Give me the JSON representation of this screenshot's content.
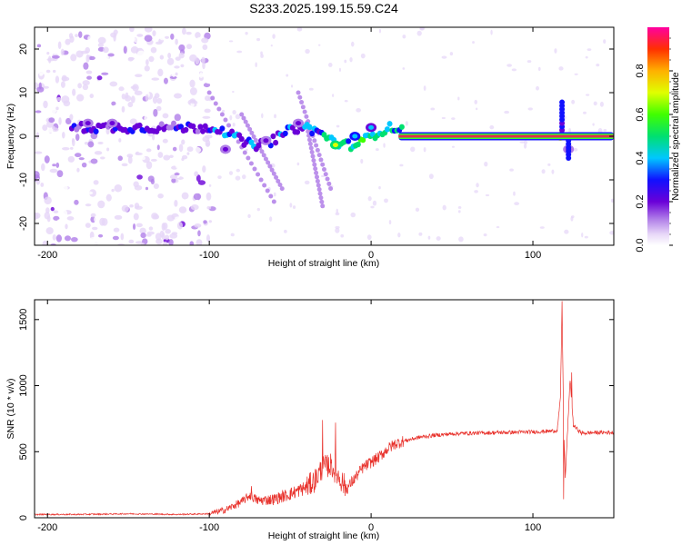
{
  "title": "S233.2025.199.15.59.C24",
  "colors": {
    "line": "#e8302a",
    "trace": "#e0304a",
    "axis": "#000000"
  },
  "chart_data": [
    {
      "type": "heatmap",
      "xlabel": "Height of straight line (km)",
      "ylabel": "Frequency (Hz)",
      "xlim": [
        -208,
        150
      ],
      "ylim": [
        -25,
        25
      ],
      "xticks": [
        "-200",
        "-100",
        "0",
        "100"
      ],
      "yticks": [
        "-20",
        "-10",
        "0",
        "10",
        "20"
      ],
      "colorbar": {
        "label": "Normalized spectral amplitude",
        "range": [
          0,
          1
        ],
        "ticks": [
          "0.0",
          "0.2",
          "0.4",
          "0.6",
          "0.8"
        ]
      },
      "main_trace": {
        "x_start": 17,
        "x_end": 150,
        "frequency": 0
      },
      "features": [
        {
          "x": -175,
          "frequency": 3,
          "amplitude": 0.25
        },
        {
          "x": -160,
          "frequency": 3,
          "amplitude": 0.3
        },
        {
          "x": -90,
          "frequency": -3,
          "amplitude": 0.3
        },
        {
          "x": -65,
          "frequency": -1,
          "amplitude": 0.3
        },
        {
          "x": -45,
          "frequency": 3,
          "amplitude": 0.3
        },
        {
          "x": -22,
          "frequency": -2,
          "amplitude": 0.75
        },
        {
          "x": -10,
          "frequency": 0,
          "amplitude": 0.5
        },
        {
          "x": 0,
          "frequency": 2,
          "amplitude": 0.45
        },
        {
          "x": 117,
          "frequency": 0,
          "amplitude": 0.9
        },
        {
          "x": 122,
          "frequency": -3,
          "amplitude": 0.25
        }
      ]
    },
    {
      "type": "line",
      "xlabel": "Height of straight line (km)",
      "ylabel": "SNR (10 * v/v)",
      "xlim": [
        -208,
        150
      ],
      "ylim": [
        0,
        1650
      ],
      "xticks": [
        "-200",
        "-100",
        "0",
        "100"
      ],
      "yticks": [
        "0",
        "500",
        "1000",
        "1500"
      ],
      "series": [
        {
          "x": [
            -208,
            -180,
            -150,
            -120,
            -100,
            -90,
            -80,
            -75,
            -70,
            -60,
            -50,
            -40,
            -35,
            -30,
            -25,
            -20,
            -15,
            -10,
            -5,
            0,
            5,
            10,
            15,
            20,
            30,
            40,
            50,
            60,
            80,
            100,
            110,
            115,
            117,
            118,
            119,
            120,
            122,
            123,
            125,
            130,
            140,
            150
          ],
          "y": [
            25,
            25,
            30,
            25,
            30,
            60,
            120,
            170,
            130,
            140,
            180,
            230,
            280,
            380,
            400,
            310,
            220,
            300,
            380,
            420,
            460,
            520,
            560,
            580,
            610,
            625,
            635,
            640,
            645,
            650,
            655,
            660,
            900,
            1600,
            700,
            300,
            800,
            1050,
            700,
            640,
            645,
            645
          ]
        }
      ],
      "spikes": [
        {
          "x": -30,
          "y": 740
        },
        {
          "x": -22,
          "y": 720
        },
        {
          "x": -74,
          "y": 240
        },
        {
          "x": 118,
          "y": 1640
        },
        {
          "x": 119,
          "y": 140
        },
        {
          "x": 124,
          "y": 1100
        }
      ]
    }
  ]
}
